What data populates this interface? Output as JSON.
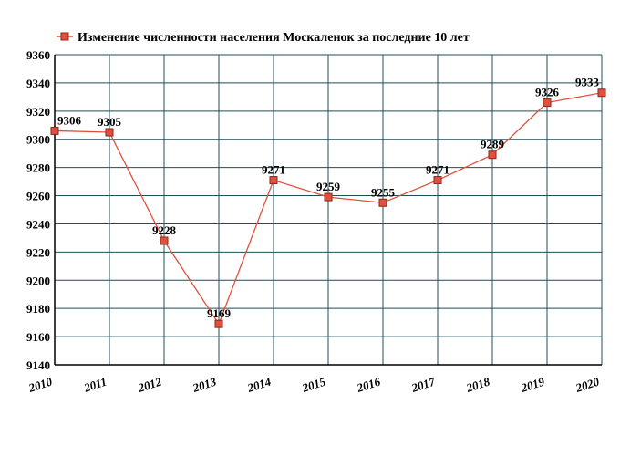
{
  "chart_data": {
    "type": "line",
    "legend_position": "top-left",
    "grid": true,
    "x": [
      "2010",
      "2011",
      "2012",
      "2013",
      "2014",
      "2015",
      "2016",
      "2017",
      "2018",
      "2019",
      "2020"
    ],
    "series": [
      {
        "name": "Изменение численности населения Москаленок за последние 10 лет",
        "values": [
          9306,
          9305,
          9228,
          9169,
          9271,
          9259,
          9255,
          9271,
          9289,
          9326,
          9333
        ],
        "color": "#e0503c"
      }
    ],
    "ylim": [
      9140,
      9360
    ],
    "yticks": [
      9140,
      9160,
      9180,
      9200,
      9220,
      9240,
      9260,
      9280,
      9300,
      9320,
      9340,
      9360
    ],
    "grid_color": "#1f4e5a"
  }
}
